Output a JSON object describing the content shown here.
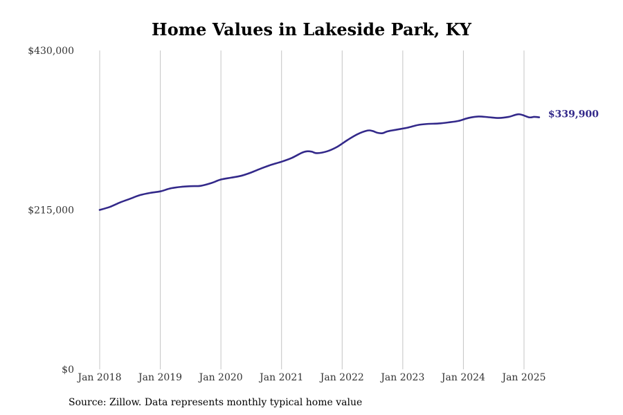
{
  "chart_data": {
    "type": "line",
    "title": "Home Values in Lakeside Park, KY",
    "source": "Source: Zillow. Data represents monthly typical home value",
    "ylim": [
      0,
      430000
    ],
    "yticks": [
      0,
      215000,
      430000
    ],
    "ytick_labels": [
      "$0",
      "$215,000",
      "$430,000"
    ],
    "xlim": [
      "2018-01",
      "2025-05"
    ],
    "xticks": [
      "2018-01",
      "2019-01",
      "2020-01",
      "2021-01",
      "2022-01",
      "2023-01",
      "2024-01",
      "2025-01"
    ],
    "xtick_labels": [
      "Jan 2018",
      "Jan 2019",
      "Jan 2020",
      "Jan 2021",
      "Jan 2022",
      "Jan 2023",
      "Jan 2024",
      "Jan 2025"
    ],
    "grid": "vertical",
    "end_label": "$339,900",
    "line_color": "#33298a",
    "series": [
      {
        "x": [
          "2018-01",
          "2018-03",
          "2018-05",
          "2018-07",
          "2018-09",
          "2018-11",
          "2019-01",
          "2019-03",
          "2019-05",
          "2019-07",
          "2019-09",
          "2019-11",
          "2020-01",
          "2020-03",
          "2020-05",
          "2020-07",
          "2020-09",
          "2020-11",
          "2021-01",
          "2021-03",
          "2021-05",
          "2021-06",
          "2021-07",
          "2021-08",
          "2021-10",
          "2021-12",
          "2022-02",
          "2022-04",
          "2022-06",
          "2022-07",
          "2022-08",
          "2022-09",
          "2022-10",
          "2022-12",
          "2023-02",
          "2023-04",
          "2023-06",
          "2023-08",
          "2023-10",
          "2023-12",
          "2024-02",
          "2024-04",
          "2024-06",
          "2024-08",
          "2024-10",
          "2024-12",
          "2025-02",
          "2025-03",
          "2025-04"
        ],
        "y": [
          215000,
          219000,
          225000,
          230000,
          235000,
          238000,
          240000,
          244000,
          246000,
          247000,
          247500,
          251000,
          256000,
          258500,
          261000,
          265500,
          271000,
          276000,
          280000,
          285000,
          292000,
          294000,
          293500,
          291500,
          294000,
          300000,
          309000,
          317000,
          322000,
          321500,
          319000,
          318500,
          321000,
          323500,
          326000,
          329500,
          331000,
          331500,
          333000,
          335000,
          339000,
          341000,
          340000,
          339000,
          340500,
          344000,
          339900,
          340500,
          339900
        ]
      }
    ]
  }
}
